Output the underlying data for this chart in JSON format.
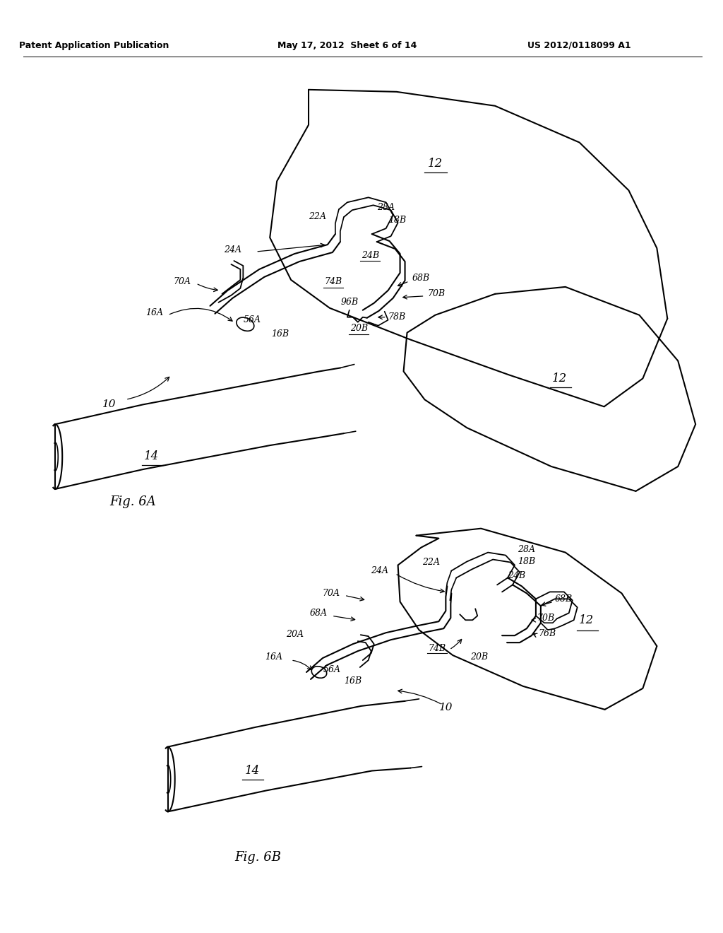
{
  "bg_color": "#ffffff",
  "line_color": "#000000",
  "header_left": "Patent Application Publication",
  "header_mid": "May 17, 2012  Sheet 6 of 14",
  "header_right": "US 2012/0118099 A1",
  "fig_label_A": "Fig. 6A",
  "fig_label_B": "Fig. 6B",
  "fig_width": 10.24,
  "fig_height": 13.2,
  "dpi": 100
}
